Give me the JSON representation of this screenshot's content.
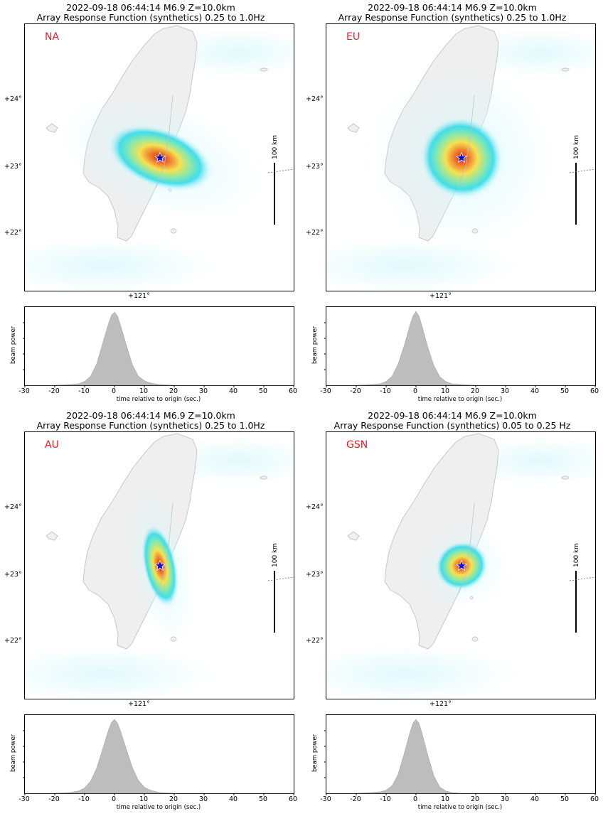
{
  "colors": {
    "label": "#e8202a",
    "star": "#1414c8",
    "land": "#efefef",
    "coast": "#c8c8c8",
    "beam": "#bdbdbd"
  },
  "panels": [
    {
      "title_line1": "2022-09-18 06:44:14 M6.9 Z=10.0km",
      "title_line2": "Array Response Function (synthetics) 0.25 to 1.0Hz",
      "label": "NA",
      "scale_label": "100 km",
      "lat_labels": [
        "+24°",
        "+23°",
        "+22°"
      ],
      "lon_label": "+121°"
    },
    {
      "title_line1": "2022-09-18 06:44:14 M6.9 Z=10.0km",
      "title_line2": "Array Response Function (synthetics) 0.25 to 1.0Hz",
      "label": "EU",
      "scale_label": "100 km",
      "lat_labels": [
        "+24°",
        "+23°",
        "+22°"
      ],
      "lon_label": "+121°"
    },
    {
      "title_line1": "2022-09-18 06:44:14 M6.9 Z=10.0km",
      "title_line2": "Array Response Function (synthetics) 0.25 to 1.0Hz",
      "label": "AU",
      "scale_label": "100 km",
      "lat_labels": [
        "+24°",
        "+23°",
        "+22°"
      ],
      "lon_label": "+121°"
    },
    {
      "title_line1": "2022-09-18 06:44:14 M6.9 Z=10.0km",
      "title_line2": "Array Response Function (synthetics) 0.05 to 0.25 Hz",
      "label": "GSN",
      "scale_label": "100 km",
      "lat_labels": [
        "+24°",
        "+23°",
        "+22°"
      ],
      "lon_label": "+121°"
    }
  ],
  "chart_data": [
    {
      "type": "area",
      "panel": "NA",
      "xlabel": "time relative to origin (sec.)",
      "ylabel": "beam power",
      "xlim": [
        -30,
        60
      ],
      "xticks": [
        -30,
        -20,
        -10,
        0,
        10,
        20,
        30,
        40,
        50,
        60
      ],
      "x": [
        -30,
        -20,
        -15,
        -12,
        -10,
        -8,
        -6,
        -4,
        -2,
        -1,
        0,
        1,
        2,
        4,
        6,
        8,
        10,
        12,
        15,
        20,
        30,
        60
      ],
      "y": [
        0,
        0,
        0.01,
        0.02,
        0.05,
        0.12,
        0.28,
        0.55,
        0.82,
        0.93,
        0.97,
        0.92,
        0.8,
        0.53,
        0.27,
        0.12,
        0.06,
        0.03,
        0.01,
        0,
        0,
        0
      ]
    },
    {
      "type": "area",
      "panel": "EU",
      "xlabel": "time relative to origin (sec.)",
      "ylabel": "beam power",
      "xlim": [
        -30,
        60
      ],
      "xticks": [
        -30,
        -20,
        -10,
        0,
        10,
        20,
        30,
        40,
        50,
        60
      ],
      "x": [
        -30,
        -20,
        -15,
        -12,
        -10,
        -8,
        -6,
        -4,
        -2,
        -1,
        0,
        1,
        2,
        4,
        6,
        8,
        10,
        12,
        15,
        20,
        30,
        60
      ],
      "y": [
        0,
        0,
        0.01,
        0.02,
        0.05,
        0.12,
        0.28,
        0.52,
        0.8,
        0.92,
        0.98,
        0.92,
        0.79,
        0.5,
        0.26,
        0.11,
        0.05,
        0.02,
        0.01,
        0,
        0,
        0
      ]
    },
    {
      "type": "area",
      "panel": "AU",
      "xlabel": "time relative to origin (sec.)",
      "ylabel": "beam power",
      "xlim": [
        -30,
        60
      ],
      "xticks": [
        -30,
        -20,
        -10,
        0,
        10,
        20,
        30,
        40,
        50,
        60
      ],
      "x": [
        -30,
        -20,
        -15,
        -12,
        -10,
        -8,
        -6,
        -4,
        -2,
        -1,
        0,
        1,
        2,
        4,
        6,
        8,
        10,
        12,
        15,
        18,
        20,
        30,
        60
      ],
      "y": [
        0,
        0,
        0.01,
        0.03,
        0.07,
        0.16,
        0.33,
        0.58,
        0.84,
        0.94,
        0.98,
        0.93,
        0.83,
        0.58,
        0.34,
        0.17,
        0.08,
        0.04,
        0.01,
        0.005,
        0,
        0,
        0
      ]
    },
    {
      "type": "area",
      "panel": "GSN",
      "xlabel": "time relative to origin (sec.)",
      "ylabel": "beam power",
      "xlim": [
        -30,
        60
      ],
      "xticks": [
        -30,
        -20,
        -10,
        0,
        10,
        20,
        30,
        40,
        50,
        60
      ],
      "x": [
        -30,
        -20,
        -15,
        -12,
        -10,
        -8,
        -6,
        -4,
        -2,
        -1,
        0,
        1,
        2,
        4,
        6,
        8,
        10,
        12,
        15,
        20,
        30,
        60
      ],
      "y": [
        0,
        0,
        0.01,
        0.02,
        0.04,
        0.1,
        0.25,
        0.52,
        0.81,
        0.93,
        0.98,
        0.93,
        0.8,
        0.5,
        0.23,
        0.08,
        0.03,
        0.01,
        0,
        0,
        0,
        0
      ]
    }
  ]
}
